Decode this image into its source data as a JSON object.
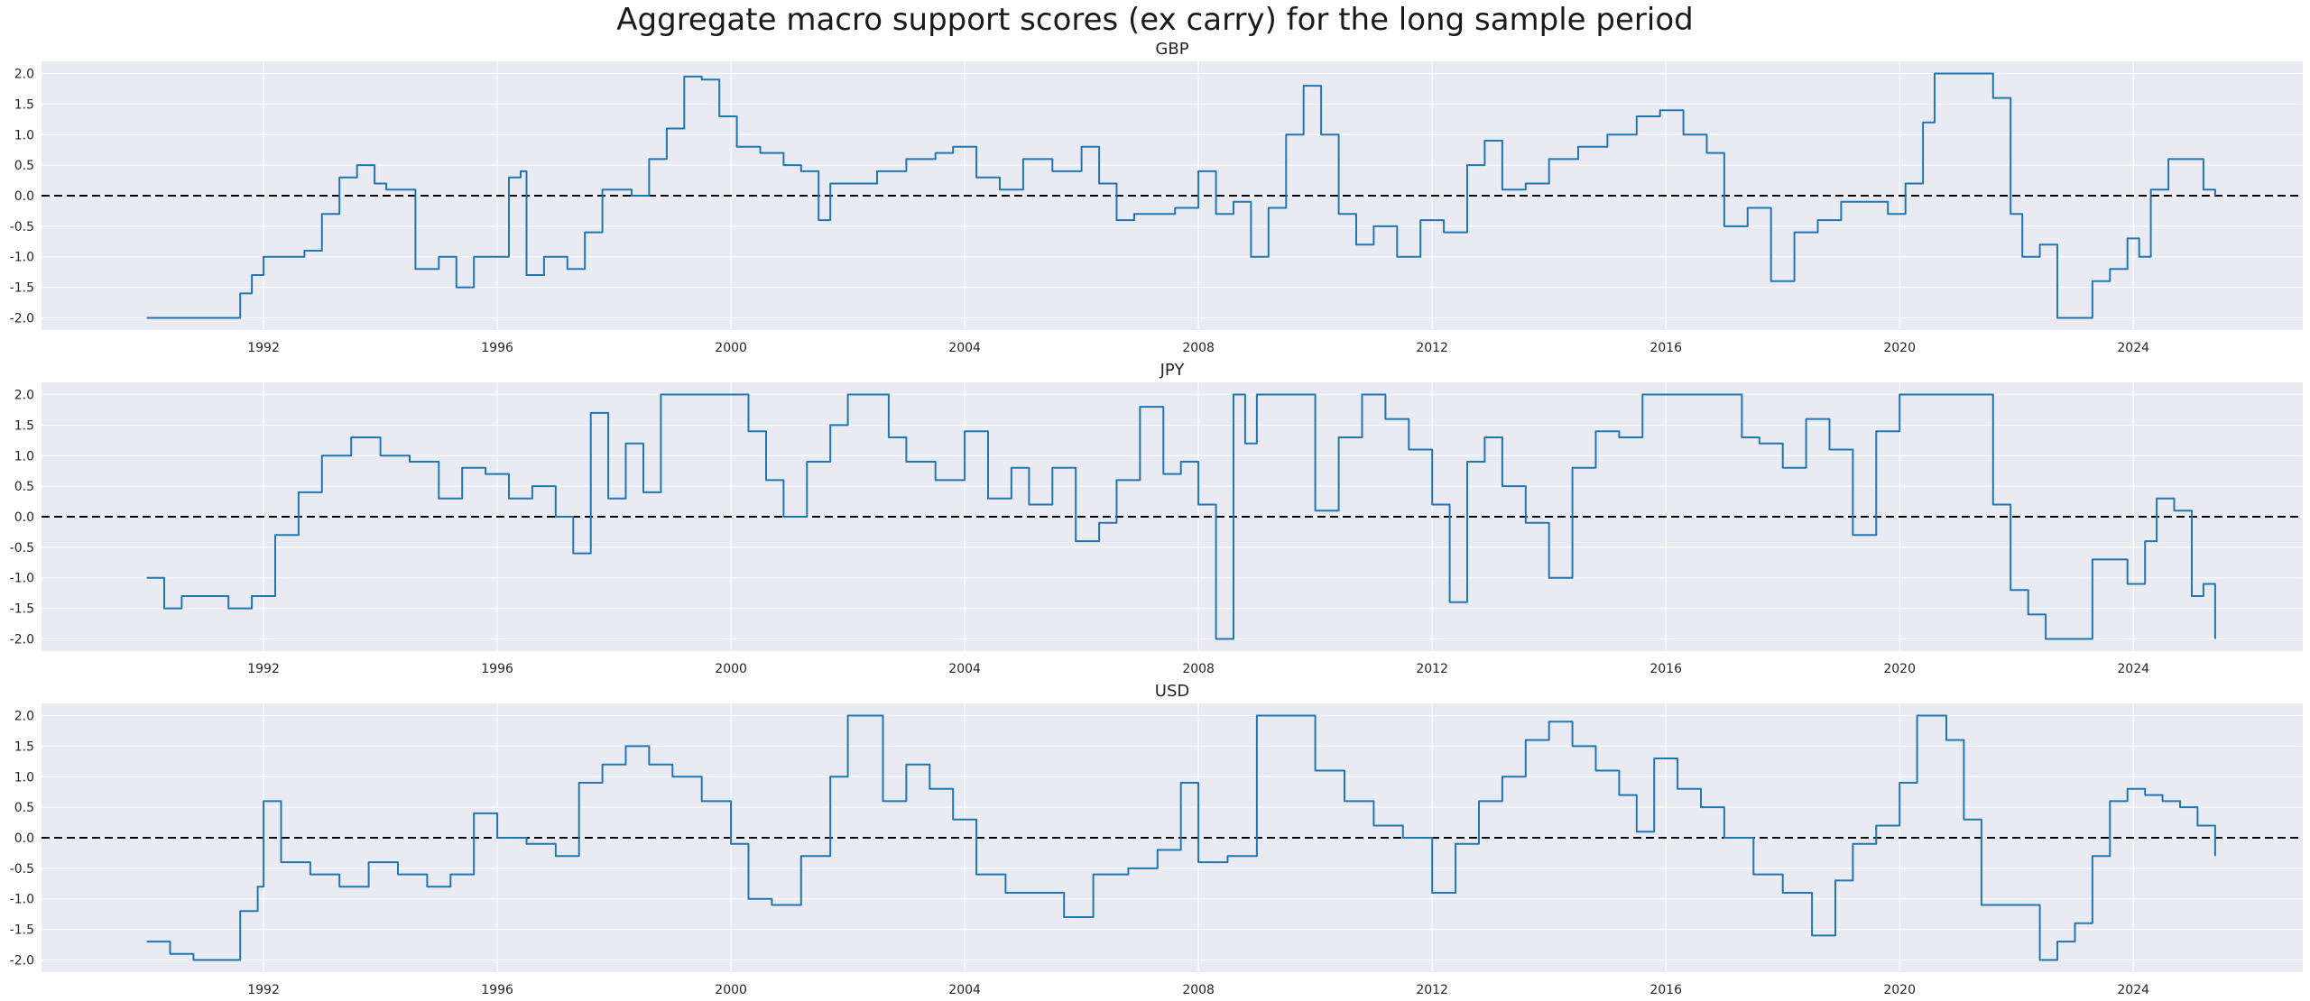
{
  "figure": {
    "title": "Aggregate macro support scores (ex carry) for the long sample period"
  },
  "style": {
    "background": "#EAEAF2",
    "grid": "#FFFFFF",
    "line": "#1F77B4",
    "zero_line": "#000000"
  },
  "chart_data": [
    {
      "type": "line",
      "title": "GBP",
      "xlabel": "",
      "ylabel": "",
      "xlim": [
        1988.2,
        2026.9
      ],
      "ylim": [
        -2.2,
        2.2
      ],
      "xticks": [
        1992,
        1996,
        2000,
        2004,
        2008,
        2012,
        2016,
        2020,
        2024
      ],
      "yticks": [
        -2.0,
        -1.5,
        -1.0,
        -0.5,
        0.0,
        0.5,
        1.0,
        1.5,
        2.0
      ],
      "grid": true,
      "hline": 0,
      "series": [
        {
          "x": [
            1990.0,
            1990.5,
            1991.0,
            1991.4,
            1991.6,
            1991.8,
            1992.0,
            1992.4,
            1992.7,
            1993.0,
            1993.3,
            1993.6,
            1993.9,
            1994.1,
            1994.5,
            1994.6,
            1995.0,
            1995.3,
            1995.6,
            1996.0,
            1996.2,
            1996.4,
            1996.5,
            1996.8,
            1997.2,
            1997.5,
            1997.8,
            1998.3,
            1998.6,
            1998.9,
            1999.2,
            1999.5,
            1999.8,
            2000.1,
            2000.5,
            2000.9,
            2001.2,
            2001.5,
            2001.7,
            2002.0,
            2002.5,
            2003.0,
            2003.5,
            2003.8,
            2004.2,
            2004.6,
            2005.0,
            2005.5,
            2006.0,
            2006.3,
            2006.6,
            2006.9,
            2007.2,
            2007.6,
            2008.0,
            2008.3,
            2008.6,
            2008.9,
            2009.2,
            2009.5,
            2009.8,
            2010.1,
            2010.4,
            2010.7,
            2011.0,
            2011.4,
            2011.8,
            2012.2,
            2012.6,
            2012.9,
            2013.2,
            2013.6,
            2014.0,
            2014.5,
            2015.0,
            2015.5,
            2015.9,
            2016.3,
            2016.7,
            2017.0,
            2017.4,
            2017.8,
            2018.2,
            2018.6,
            2019.0,
            2019.4,
            2019.8,
            2020.1,
            2020.4,
            2020.6,
            2021.0,
            2021.4,
            2021.6,
            2021.9,
            2022.1,
            2022.4,
            2022.7,
            2023.0,
            2023.3,
            2023.6,
            2023.9,
            2024.1,
            2024.3,
            2024.6,
            2024.9,
            2025.2,
            2025.4
          ],
          "y": [
            -2.0,
            -2.0,
            -2.0,
            -2.0,
            -1.6,
            -1.3,
            -1.0,
            -1.0,
            -0.9,
            -0.3,
            0.3,
            0.5,
            0.2,
            0.1,
            0.1,
            -1.2,
            -1.0,
            -1.5,
            -1.0,
            -1.0,
            0.3,
            0.4,
            -1.3,
            -1.0,
            -1.2,
            -0.6,
            0.1,
            0.0,
            0.6,
            1.1,
            1.95,
            1.9,
            1.3,
            0.8,
            0.7,
            0.5,
            0.4,
            -0.4,
            0.2,
            0.2,
            0.4,
            0.6,
            0.7,
            0.8,
            0.3,
            0.1,
            0.6,
            0.4,
            0.8,
            0.2,
            -0.4,
            -0.3,
            -0.3,
            -0.2,
            0.4,
            -0.3,
            -0.1,
            -1.0,
            -0.2,
            1.0,
            1.8,
            1.0,
            -0.3,
            -0.8,
            -0.5,
            -1.0,
            -0.4,
            -0.6,
            0.5,
            0.9,
            0.1,
            0.2,
            0.6,
            0.8,
            1.0,
            1.3,
            1.4,
            1.0,
            0.7,
            -0.5,
            -0.2,
            -1.4,
            -0.6,
            -0.4,
            -0.1,
            -0.1,
            -0.3,
            0.2,
            1.2,
            2.0,
            2.0,
            2.0,
            1.6,
            -0.3,
            -1.0,
            -0.8,
            -2.0,
            -2.0,
            -1.4,
            -1.2,
            -0.7,
            -1.0,
            0.1,
            0.6,
            0.6,
            0.1,
            0.0
          ]
        }
      ]
    },
    {
      "type": "line",
      "title": "JPY",
      "xlabel": "",
      "ylabel": "",
      "xlim": [
        1988.2,
        2026.9
      ],
      "ylim": [
        -2.2,
        2.2
      ],
      "xticks": [
        1992,
        1996,
        2000,
        2004,
        2008,
        2012,
        2016,
        2020,
        2024
      ],
      "yticks": [
        -2.0,
        -1.5,
        -1.0,
        -0.5,
        0.0,
        0.5,
        1.0,
        1.5,
        2.0
      ],
      "grid": true,
      "hline": 0,
      "series": [
        {
          "x": [
            1990.0,
            1990.3,
            1990.6,
            1991.0,
            1991.4,
            1991.8,
            1992.2,
            1992.6,
            1993.0,
            1993.5,
            1994.0,
            1994.5,
            1995.0,
            1995.4,
            1995.8,
            1996.2,
            1996.6,
            1997.0,
            1997.3,
            1997.6,
            1997.9,
            1998.2,
            1998.5,
            1998.8,
            1999.2,
            1999.6,
            2000.0,
            2000.3,
            2000.6,
            2000.9,
            2001.3,
            2001.7,
            2002.0,
            2002.3,
            2002.7,
            2003.0,
            2003.5,
            2004.0,
            2004.4,
            2004.8,
            2005.1,
            2005.5,
            2005.9,
            2006.3,
            2006.6,
            2007.0,
            2007.4,
            2007.7,
            2008.0,
            2008.3,
            2008.6,
            2008.8,
            2009.0,
            2009.5,
            2010.0,
            2010.4,
            2010.8,
            2011.2,
            2011.6,
            2012.0,
            2012.3,
            2012.6,
            2012.9,
            2013.2,
            2013.6,
            2014.0,
            2014.4,
            2014.8,
            2015.2,
            2015.6,
            2016.0,
            2016.5,
            2017.0,
            2017.3,
            2017.6,
            2018.0,
            2018.4,
            2018.8,
            2019.2,
            2019.6,
            2020.0,
            2020.5,
            2021.0,
            2021.3,
            2021.6,
            2021.9,
            2022.2,
            2022.5,
            2023.0,
            2023.3,
            2023.6,
            2023.9,
            2024.2,
            2024.4,
            2024.7,
            2025.0,
            2025.2,
            2025.4
          ],
          "y": [
            -1.0,
            -1.5,
            -1.3,
            -1.3,
            -1.5,
            -1.3,
            -0.3,
            0.4,
            1.0,
            1.3,
            1.0,
            0.9,
            0.3,
            0.8,
            0.7,
            0.3,
            0.5,
            0.0,
            -0.6,
            1.7,
            0.3,
            1.2,
            0.4,
            2.0,
            2.0,
            2.0,
            2.0,
            1.4,
            0.6,
            0.0,
            0.9,
            1.5,
            2.0,
            2.0,
            1.3,
            0.9,
            0.6,
            1.4,
            0.3,
            0.8,
            0.2,
            0.8,
            -0.4,
            -0.1,
            0.6,
            1.8,
            0.7,
            0.9,
            0.2,
            -2.0,
            2.0,
            1.2,
            2.0,
            2.0,
            0.1,
            1.3,
            2.0,
            1.6,
            1.1,
            0.2,
            -1.4,
            0.9,
            1.3,
            0.5,
            -0.1,
            -1.0,
            0.8,
            1.4,
            1.3,
            2.0,
            2.0,
            2.0,
            2.0,
            1.3,
            1.2,
            0.8,
            1.6,
            1.1,
            -0.3,
            1.4,
            2.0,
            2.0,
            2.0,
            2.0,
            0.2,
            -1.2,
            -1.6,
            -2.0,
            -2.0,
            -0.7,
            -0.7,
            -1.1,
            -0.4,
            0.3,
            0.1,
            -1.3,
            -1.1,
            -2.0
          ]
        }
      ]
    },
    {
      "type": "line",
      "title": "USD",
      "xlabel": "",
      "ylabel": "",
      "xlim": [
        1988.2,
        2026.9
      ],
      "ylim": [
        -2.2,
        2.2
      ],
      "xticks": [
        1992,
        1996,
        2000,
        2004,
        2008,
        2012,
        2016,
        2020,
        2024
      ],
      "yticks": [
        -2.0,
        -1.5,
        -1.0,
        -0.5,
        0.0,
        0.5,
        1.0,
        1.5,
        2.0
      ],
      "grid": true,
      "hline": 0,
      "series": [
        {
          "x": [
            1990.0,
            1990.4,
            1990.8,
            1991.3,
            1991.6,
            1991.9,
            1992.0,
            1992.3,
            1992.8,
            1993.3,
            1993.8,
            1994.3,
            1994.8,
            1995.2,
            1995.6,
            1996.0,
            1996.5,
            1997.0,
            1997.4,
            1997.8,
            1998.2,
            1998.6,
            1999.0,
            1999.5,
            2000.0,
            2000.3,
            2000.7,
            2001.2,
            2001.7,
            2002.0,
            2002.3,
            2002.6,
            2003.0,
            2003.4,
            2003.8,
            2004.2,
            2004.7,
            2005.2,
            2005.7,
            2006.2,
            2006.8,
            2007.3,
            2007.7,
            2008.0,
            2008.5,
            2009.0,
            2009.3,
            2009.6,
            2010.0,
            2010.5,
            2011.0,
            2011.5,
            2012.0,
            2012.4,
            2012.8,
            2013.2,
            2013.6,
            2014.0,
            2014.4,
            2014.8,
            2015.2,
            2015.5,
            2015.8,
            2016.2,
            2016.6,
            2017.0,
            2017.5,
            2018.0,
            2018.5,
            2018.9,
            2019.2,
            2019.6,
            2020.0,
            2020.3,
            2020.5,
            2020.8,
            2021.1,
            2021.4,
            2022.0,
            2022.4,
            2022.7,
            2023.0,
            2023.3,
            2023.6,
            2023.9,
            2024.2,
            2024.5,
            2024.8,
            2025.1,
            2025.4
          ],
          "y": [
            -1.7,
            -1.9,
            -2.0,
            -2.0,
            -1.2,
            -0.8,
            0.6,
            -0.4,
            -0.6,
            -0.8,
            -0.4,
            -0.6,
            -0.8,
            -0.6,
            0.4,
            0.0,
            -0.1,
            -0.3,
            0.9,
            1.2,
            1.5,
            1.2,
            1.0,
            0.6,
            -0.1,
            -1.0,
            -1.1,
            -0.3,
            1.0,
            2.0,
            2.0,
            0.6,
            1.2,
            0.8,
            0.3,
            -0.6,
            -0.9,
            -0.9,
            -1.3,
            -0.6,
            -0.5,
            -0.2,
            0.9,
            -0.4,
            -0.3,
            2.0,
            2.0,
            2.0,
            1.1,
            0.6,
            0.2,
            0.0,
            -0.9,
            -0.1,
            0.6,
            1.0,
            1.6,
            1.9,
            1.5,
            1.1,
            0.7,
            0.1,
            1.3,
            0.8,
            0.5,
            0.0,
            -0.6,
            -0.9,
            -1.6,
            -0.7,
            -0.1,
            0.2,
            0.9,
            2.0,
            2.0,
            1.6,
            0.3,
            -1.1,
            -1.1,
            -2.0,
            -1.7,
            -1.4,
            -0.3,
            0.6,
            0.8,
            0.7,
            0.6,
            0.5,
            0.2,
            -0.3
          ]
        }
      ]
    }
  ]
}
